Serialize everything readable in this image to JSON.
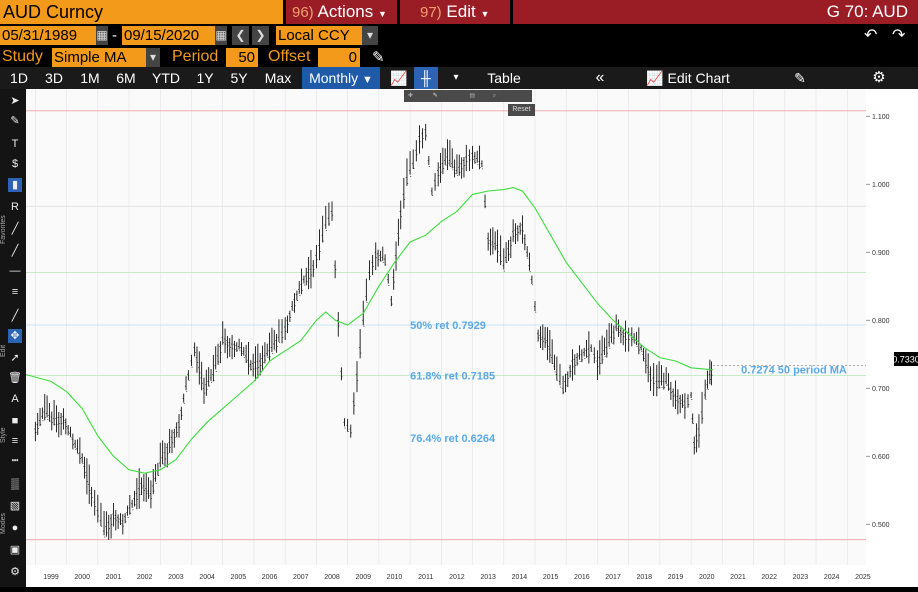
{
  "header": {
    "ticker": "AUD Curncy",
    "actions_num": "96)",
    "actions_label": "Actions",
    "edit_num": "97)",
    "edit_label": "Edit",
    "function_code": "G 70: AUD"
  },
  "controls": {
    "start_date": "05/31/1989",
    "dash": "-",
    "end_date": "09/15/2020",
    "currency": "Local CCY",
    "study_label": "Study",
    "study_value": "Simple MA",
    "period_label": "Period",
    "period_value": "50",
    "offset_label": "Offset",
    "offset_value": "0"
  },
  "range_buttons": [
    "1D",
    "3D",
    "1M",
    "6M",
    "YTD",
    "1Y",
    "5Y",
    "Max"
  ],
  "frequency": "Monthly",
  "toolbar": {
    "table_label": "Table",
    "edit_chart_label": "Edit Chart"
  },
  "mini_tools": {
    "zoom_reset": "Reset"
  },
  "sidebar_labels": {
    "favorites": "Favorites",
    "edit": "Edit",
    "style": "Style",
    "modes": "Modes"
  },
  "colors": {
    "accent_orange": "#f39a1b",
    "header_red": "#9a1d26",
    "active_blue": "#1e5aa8",
    "ma_line": "#3ddc3d",
    "annotation_blue": "#5aa9e6",
    "high_line": "#f2a0a0",
    "mid_fib": "#b8e7b8",
    "fifty_fib": "#b8dff0"
  },
  "chart_data": {
    "type": "line",
    "x_ticks": [
      "1999",
      "2000",
      "2001",
      "2002",
      "2003",
      "2004",
      "2005",
      "2006",
      "2007",
      "2008",
      "2009",
      "2010",
      "2011",
      "2012",
      "2013",
      "2014",
      "2015",
      "2016",
      "2017",
      "2018",
      "2019",
      "2020",
      "2021",
      "2022",
      "2023",
      "2024",
      "2025"
    ],
    "y_ticks": [
      "1.100",
      "1.000",
      "0.900",
      "0.800",
      "0.700",
      "0.600",
      "0.500"
    ],
    "ylim": [
      0.44,
      1.14
    ],
    "xlim": [
      1998.7,
      2025.6
    ],
    "last_price": "0.7330",
    "annotations": [
      {
        "text": "50% ret 0.7929",
        "x": 2011.0,
        "y": 0.7929
      },
      {
        "text": "61.8% ret 0.7185",
        "x": 2011.0,
        "y": 0.7185
      },
      {
        "text": "76.4% ret 0.6264",
        "x": 2011.0,
        "y": 0.6264
      },
      {
        "text": "0.7274 50 period MA",
        "x": 2021.6,
        "y": 0.7274
      }
    ],
    "ohlc_close_series": [
      [
        1999.0,
        0.64
      ],
      [
        1999.3,
        0.665
      ],
      [
        1999.6,
        0.655
      ],
      [
        1999.9,
        0.658
      ],
      [
        2000.2,
        0.625
      ],
      [
        2000.5,
        0.598
      ],
      [
        2000.8,
        0.545
      ],
      [
        2001.0,
        0.52
      ],
      [
        2001.2,
        0.49
      ],
      [
        2001.5,
        0.515
      ],
      [
        2001.8,
        0.505
      ],
      [
        2002.1,
        0.53
      ],
      [
        2002.4,
        0.56
      ],
      [
        2002.7,
        0.545
      ],
      [
        2003.0,
        0.59
      ],
      [
        2003.3,
        0.62
      ],
      [
        2003.6,
        0.65
      ],
      [
        2003.9,
        0.72
      ],
      [
        2004.1,
        0.76
      ],
      [
        2004.4,
        0.7
      ],
      [
        2004.7,
        0.72
      ],
      [
        2005.0,
        0.775
      ],
      [
        2005.3,
        0.765
      ],
      [
        2005.6,
        0.76
      ],
      [
        2005.9,
        0.735
      ],
      [
        2006.2,
        0.74
      ],
      [
        2006.5,
        0.755
      ],
      [
        2006.8,
        0.775
      ],
      [
        2007.0,
        0.79
      ],
      [
        2007.3,
        0.83
      ],
      [
        2007.6,
        0.86
      ],
      [
        2007.9,
        0.88
      ],
      [
        2008.1,
        0.91
      ],
      [
        2008.3,
        0.94
      ],
      [
        2008.5,
        0.96
      ],
      [
        2008.7,
        0.8
      ],
      [
        2008.9,
        0.65
      ],
      [
        2009.1,
        0.64
      ],
      [
        2009.3,
        0.72
      ],
      [
        2009.5,
        0.8
      ],
      [
        2009.7,
        0.87
      ],
      [
        2009.9,
        0.9
      ],
      [
        2010.2,
        0.89
      ],
      [
        2010.4,
        0.83
      ],
      [
        2010.7,
        0.96
      ],
      [
        2010.9,
        1.01
      ],
      [
        2011.1,
        1.03
      ],
      [
        2011.3,
        1.07
      ],
      [
        2011.5,
        1.08
      ],
      [
        2011.7,
        0.99
      ],
      [
        2011.9,
        1.02
      ],
      [
        2012.2,
        1.04
      ],
      [
        2012.5,
        1.02
      ],
      [
        2012.8,
        1.04
      ],
      [
        2013.0,
        1.045
      ],
      [
        2013.3,
        1.03
      ],
      [
        2013.5,
        0.92
      ],
      [
        2013.8,
        0.91
      ],
      [
        2014.0,
        0.88
      ],
      [
        2014.3,
        0.93
      ],
      [
        2014.6,
        0.94
      ],
      [
        2014.9,
        0.86
      ],
      [
        2015.1,
        0.78
      ],
      [
        2015.4,
        0.77
      ],
      [
        2015.7,
        0.72
      ],
      [
        2015.9,
        0.7
      ],
      [
        2016.2,
        0.74
      ],
      [
        2016.5,
        0.75
      ],
      [
        2016.8,
        0.76
      ],
      [
        2017.0,
        0.74
      ],
      [
        2017.3,
        0.76
      ],
      [
        2017.6,
        0.79
      ],
      [
        2017.9,
        0.78
      ],
      [
        2018.1,
        0.78
      ],
      [
        2018.4,
        0.76
      ],
      [
        2018.7,
        0.72
      ],
      [
        2018.9,
        0.71
      ],
      [
        2019.2,
        0.71
      ],
      [
        2019.5,
        0.69
      ],
      [
        2019.8,
        0.68
      ],
      [
        2020.0,
        0.69
      ],
      [
        2020.1,
        0.62
      ],
      [
        2020.25,
        0.64
      ],
      [
        2020.45,
        0.69
      ],
      [
        2020.6,
        0.72
      ],
      [
        2020.7,
        0.733
      ]
    ],
    "ma_series": [
      [
        1998.7,
        0.72
      ],
      [
        1999.5,
        0.71
      ],
      [
        2000.0,
        0.695
      ],
      [
        2000.5,
        0.67
      ],
      [
        2001.0,
        0.63
      ],
      [
        2001.5,
        0.6
      ],
      [
        2002.0,
        0.58
      ],
      [
        2002.5,
        0.575
      ],
      [
        2003.0,
        0.58
      ],
      [
        2003.5,
        0.595
      ],
      [
        2004.0,
        0.625
      ],
      [
        2004.5,
        0.65
      ],
      [
        2005.0,
        0.67
      ],
      [
        2005.5,
        0.69
      ],
      [
        2006.0,
        0.71
      ],
      [
        2006.5,
        0.74
      ],
      [
        2007.0,
        0.755
      ],
      [
        2007.5,
        0.77
      ],
      [
        2008.0,
        0.8
      ],
      [
        2008.3,
        0.812
      ],
      [
        2008.6,
        0.8
      ],
      [
        2009.0,
        0.793
      ],
      [
        2009.5,
        0.81
      ],
      [
        2010.0,
        0.85
      ],
      [
        2010.5,
        0.885
      ],
      [
        2011.0,
        0.915
      ],
      [
        2011.5,
        0.925
      ],
      [
        2012.0,
        0.945
      ],
      [
        2012.5,
        0.96
      ],
      [
        2013.0,
        0.985
      ],
      [
        2013.5,
        0.99
      ],
      [
        2014.0,
        0.992
      ],
      [
        2014.3,
        0.995
      ],
      [
        2014.6,
        0.99
      ],
      [
        2015.0,
        0.965
      ],
      [
        2015.5,
        0.925
      ],
      [
        2016.0,
        0.885
      ],
      [
        2016.5,
        0.855
      ],
      [
        2017.0,
        0.825
      ],
      [
        2017.5,
        0.8
      ],
      [
        2018.0,
        0.78
      ],
      [
        2018.5,
        0.76
      ],
      [
        2019.0,
        0.745
      ],
      [
        2019.5,
        0.74
      ],
      [
        2020.0,
        0.73
      ],
      [
        2020.7,
        0.727
      ]
    ],
    "fib_lines": [
      {
        "level": 1.1079,
        "color": "#f2a0a0"
      },
      {
        "level": 0.9675,
        "color": "#e0e0e0"
      },
      {
        "level": 0.87,
        "color": "#b8e7b8"
      },
      {
        "level": 0.7929,
        "color": "#b8dff0"
      },
      {
        "level": 0.7185,
        "color": "#b8e7b8"
      },
      {
        "level": 0.4772,
        "color": "#f2a0a0"
      }
    ]
  }
}
